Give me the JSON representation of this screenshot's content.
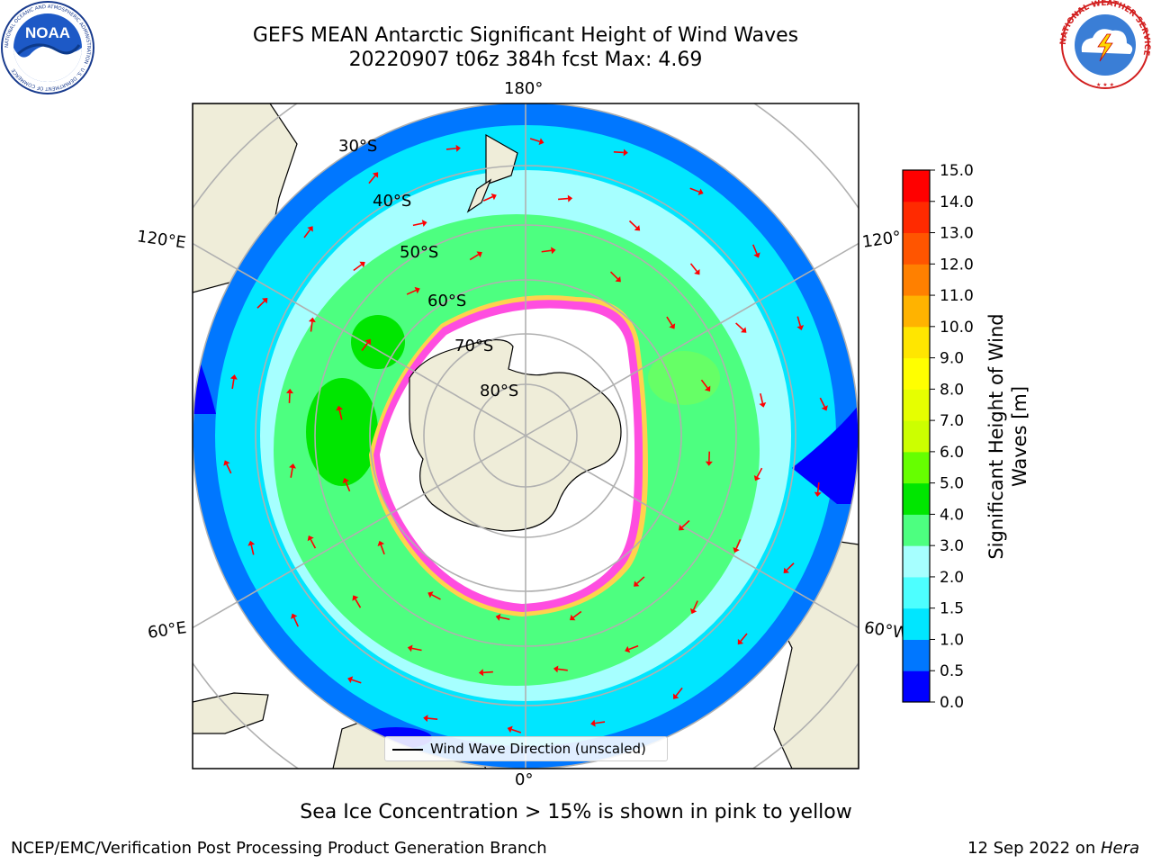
{
  "header": {
    "title_line1": "GEFS MEAN Antarctic Significant Height of Wind Waves",
    "title_line2": "20220907 t06z 384h fcst   Max: 4.69"
  },
  "logos": {
    "left": "NOAA",
    "left_ring_text": "NATIONAL OCEANIC AND ATMOSPHERIC ADMINISTRATION · U.S. DEPARTMENT OF COMMERCE",
    "right_ring_text": "NATIONAL WEATHER SERVICE"
  },
  "map": {
    "projection": "south-polar-stereographic",
    "longitude_labels": {
      "top": "180°",
      "bottom": "0°",
      "upper_left": "120°E",
      "lower_left": "60°E",
      "upper_right": "120°W",
      "lower_right": "60°W"
    },
    "latitude_labels": [
      "30°S",
      "40°S",
      "50°S",
      "60°S",
      "70°S",
      "80°S"
    ],
    "legend": "Wind Wave Direction (unscaled)",
    "colors": {
      "land": "#efedd9",
      "sea_ice_edge_pink": "#ff4de0",
      "sea_ice_edge_yellow": "#ffd24d",
      "wave_arrow": "#ff0000",
      "grid": "#b0b0b0"
    }
  },
  "colorbar": {
    "label": "Significant Height of Wind Waves [m]",
    "label_line1": "Significant Height of Wind",
    "label_line2": "Waves [m]",
    "ticks": [
      "0.0",
      "0.5",
      "1.0",
      "1.5",
      "2.0",
      "3.0",
      "4.0",
      "5.0",
      "6.0",
      "7.0",
      "8.0",
      "9.0",
      "10.0",
      "11.0",
      "12.0",
      "13.0",
      "14.0",
      "15.0"
    ],
    "colors": [
      "#0000ff",
      "#0077ff",
      "#00e6ff",
      "#4dffff",
      "#a6ffff",
      "#4dff80",
      "#00e600",
      "#66ff00",
      "#ccff00",
      "#e6ff00",
      "#ffff00",
      "#ffe600",
      "#ffb300",
      "#ff8000",
      "#ff5500",
      "#ff2a00",
      "#ff0000"
    ]
  },
  "footer": {
    "subtitle": "Sea Ice Concentration > 15% is shown in pink to yellow",
    "credit": "NCEP/EMC/Verification Post Processing Product Generation Branch",
    "date": "12 Sep 2022 on ",
    "system": "Hera"
  }
}
